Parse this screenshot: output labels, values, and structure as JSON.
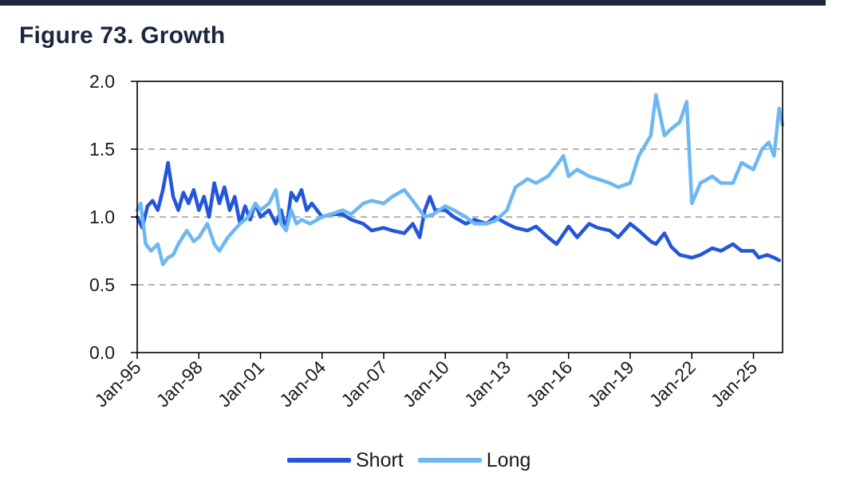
{
  "title": "Figure 73. Growth",
  "chart_data": {
    "type": "line",
    "title": "Figure 73. Growth",
    "xlabel": "",
    "ylabel": "",
    "ylim": [
      0,
      2
    ],
    "yticks": [
      "0.0",
      "0.5",
      "1.0",
      "1.5",
      "2.0"
    ],
    "xticks": [
      "Jan-95",
      "Jan-98",
      "Jan-01",
      "Jan-04",
      "Jan-07",
      "Jan-10",
      "Jan-13",
      "Jan-16",
      "Jan-19",
      "Jan-22",
      "Jan-25"
    ],
    "xrange": [
      "1995-01",
      "2026-06"
    ],
    "grid": "horizontal dashed",
    "legend_position": "bottom",
    "series": [
      {
        "name": "Short",
        "color": "#2456d9",
        "points": [
          [
            "1995-01",
            1.0
          ],
          [
            "1995-04",
            0.92
          ],
          [
            "1995-07",
            1.08
          ],
          [
            "1995-10",
            1.12
          ],
          [
            "1996-01",
            1.05
          ],
          [
            "1996-04",
            1.2
          ],
          [
            "1996-07",
            1.4
          ],
          [
            "1996-10",
            1.15
          ],
          [
            "1997-01",
            1.05
          ],
          [
            "1997-04",
            1.18
          ],
          [
            "1997-07",
            1.1
          ],
          [
            "1997-10",
            1.2
          ],
          [
            "1998-01",
            1.05
          ],
          [
            "1998-04",
            1.15
          ],
          [
            "1998-07",
            1.0
          ],
          [
            "1998-10",
            1.25
          ],
          [
            "1999-01",
            1.1
          ],
          [
            "1999-04",
            1.22
          ],
          [
            "1999-07",
            1.05
          ],
          [
            "1999-10",
            1.15
          ],
          [
            "2000-01",
            0.95
          ],
          [
            "2000-04",
            1.08
          ],
          [
            "2000-07",
            0.98
          ],
          [
            "2000-10",
            1.1
          ],
          [
            "2001-01",
            1.0
          ],
          [
            "2001-06",
            1.05
          ],
          [
            "2001-10",
            0.95
          ],
          [
            "2002-01",
            1.05
          ],
          [
            "2002-04",
            0.9
          ],
          [
            "2002-07",
            1.18
          ],
          [
            "2002-10",
            1.12
          ],
          [
            "2003-01",
            1.2
          ],
          [
            "2003-04",
            1.05
          ],
          [
            "2003-07",
            1.1
          ],
          [
            "2004-01",
            1.0
          ],
          [
            "2004-06",
            1.02
          ],
          [
            "2005-01",
            1.02
          ],
          [
            "2005-06",
            0.98
          ],
          [
            "2006-01",
            0.95
          ],
          [
            "2006-06",
            0.9
          ],
          [
            "2007-01",
            0.92
          ],
          [
            "2007-06",
            0.9
          ],
          [
            "2008-01",
            0.88
          ],
          [
            "2008-06",
            0.95
          ],
          [
            "2008-10",
            0.85
          ],
          [
            "2009-01",
            1.05
          ],
          [
            "2009-04",
            1.15
          ],
          [
            "2009-07",
            1.05
          ],
          [
            "2010-01",
            1.05
          ],
          [
            "2010-06",
            1.0
          ],
          [
            "2011-01",
            0.95
          ],
          [
            "2011-06",
            0.98
          ],
          [
            "2012-01",
            0.95
          ],
          [
            "2012-06",
            1.0
          ],
          [
            "2013-01",
            0.95
          ],
          [
            "2013-06",
            0.92
          ],
          [
            "2014-01",
            0.9
          ],
          [
            "2014-06",
            0.93
          ],
          [
            "2015-01",
            0.85
          ],
          [
            "2015-06",
            0.8
          ],
          [
            "2016-01",
            0.93
          ],
          [
            "2016-06",
            0.85
          ],
          [
            "2017-01",
            0.95
          ],
          [
            "2017-06",
            0.92
          ],
          [
            "2018-01",
            0.9
          ],
          [
            "2018-06",
            0.85
          ],
          [
            "2019-01",
            0.95
          ],
          [
            "2019-06",
            0.9
          ],
          [
            "2020-01",
            0.82
          ],
          [
            "2020-04",
            0.8
          ],
          [
            "2020-09",
            0.88
          ],
          [
            "2021-01",
            0.78
          ],
          [
            "2021-06",
            0.72
          ],
          [
            "2022-01",
            0.7
          ],
          [
            "2022-06",
            0.72
          ],
          [
            "2023-01",
            0.77
          ],
          [
            "2023-06",
            0.75
          ],
          [
            "2024-01",
            0.8
          ],
          [
            "2024-06",
            0.75
          ],
          [
            "2025-01",
            0.75
          ],
          [
            "2025-04",
            0.7
          ],
          [
            "2025-09",
            0.72
          ],
          [
            "2026-01",
            0.7
          ],
          [
            "2026-04",
            0.68
          ]
        ]
      },
      {
        "name": "Long",
        "color": "#6db8f2",
        "points": [
          [
            "1995-01",
            1.05
          ],
          [
            "1995-03",
            1.1
          ],
          [
            "1995-06",
            0.8
          ],
          [
            "1995-09",
            0.75
          ],
          [
            "1996-01",
            0.8
          ],
          [
            "1996-04",
            0.65
          ],
          [
            "1996-07",
            0.7
          ],
          [
            "1996-10",
            0.72
          ],
          [
            "1997-01",
            0.8
          ],
          [
            "1997-06",
            0.9
          ],
          [
            "1997-10",
            0.82
          ],
          [
            "1998-01",
            0.85
          ],
          [
            "1998-06",
            0.95
          ],
          [
            "1998-10",
            0.8
          ],
          [
            "1999-01",
            0.75
          ],
          [
            "1999-06",
            0.85
          ],
          [
            "2000-01",
            0.95
          ],
          [
            "2000-06",
            1.0
          ],
          [
            "2000-10",
            1.1
          ],
          [
            "2001-01",
            1.05
          ],
          [
            "2001-06",
            1.1
          ],
          [
            "2001-10",
            1.2
          ],
          [
            "2002-01",
            0.95
          ],
          [
            "2002-04",
            0.9
          ],
          [
            "2002-07",
            1.05
          ],
          [
            "2002-10",
            0.95
          ],
          [
            "2003-01",
            0.98
          ],
          [
            "2003-06",
            0.95
          ],
          [
            "2004-01",
            1.0
          ],
          [
            "2004-06",
            1.02
          ],
          [
            "2005-01",
            1.05
          ],
          [
            "2005-06",
            1.02
          ],
          [
            "2006-01",
            1.1
          ],
          [
            "2006-06",
            1.12
          ],
          [
            "2007-01",
            1.1
          ],
          [
            "2007-06",
            1.15
          ],
          [
            "2008-01",
            1.2
          ],
          [
            "2008-06",
            1.12
          ],
          [
            "2009-01",
            1.0
          ],
          [
            "2009-06",
            1.02
          ],
          [
            "2010-01",
            1.08
          ],
          [
            "2010-06",
            1.05
          ],
          [
            "2011-01",
            1.0
          ],
          [
            "2011-06",
            0.95
          ],
          [
            "2012-01",
            0.95
          ],
          [
            "2012-06",
            0.97
          ],
          [
            "2013-01",
            1.05
          ],
          [
            "2013-06",
            1.22
          ],
          [
            "2014-01",
            1.28
          ],
          [
            "2014-06",
            1.25
          ],
          [
            "2015-01",
            1.3
          ],
          [
            "2015-06",
            1.38
          ],
          [
            "2015-10",
            1.45
          ],
          [
            "2016-01",
            1.3
          ],
          [
            "2016-06",
            1.35
          ],
          [
            "2017-01",
            1.3
          ],
          [
            "2017-06",
            1.28
          ],
          [
            "2018-01",
            1.25
          ],
          [
            "2018-06",
            1.22
          ],
          [
            "2019-01",
            1.25
          ],
          [
            "2019-06",
            1.45
          ],
          [
            "2020-01",
            1.6
          ],
          [
            "2020-04",
            1.9
          ],
          [
            "2020-09",
            1.6
          ],
          [
            "2021-01",
            1.65
          ],
          [
            "2021-06",
            1.7
          ],
          [
            "2021-10",
            1.85
          ],
          [
            "2022-01",
            1.1
          ],
          [
            "2022-06",
            1.25
          ],
          [
            "2023-01",
            1.3
          ],
          [
            "2023-06",
            1.25
          ],
          [
            "2024-01",
            1.25
          ],
          [
            "2024-06",
            1.4
          ],
          [
            "2025-01",
            1.35
          ],
          [
            "2025-06",
            1.5
          ],
          [
            "2025-10",
            1.55
          ],
          [
            "2026-01",
            1.45
          ],
          [
            "2026-04",
            1.8
          ],
          [
            "2026-06",
            1.68
          ]
        ]
      }
    ]
  }
}
